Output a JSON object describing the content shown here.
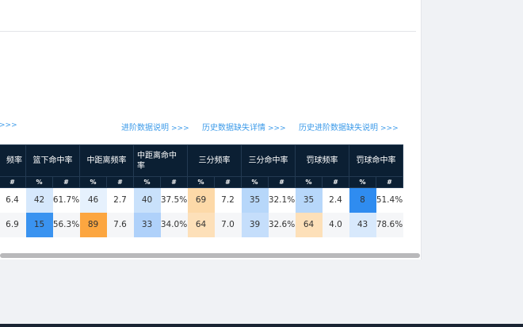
{
  "links": [
    {
      "label": "",
      "arrow": ">>>"
    },
    {
      "label": "进阶数据说明",
      "arrow": ">>>"
    },
    {
      "label": "历史数据缺失详情",
      "arrow": ">>>"
    },
    {
      "label": "历史进阶数据缺失说明",
      "arrow": ">>>"
    }
  ],
  "table": {
    "groups": [
      "频率",
      "篮下命中率",
      "中距离频率",
      "中距离命中率",
      "三分频率",
      "三分命中率",
      "罚球频率",
      "罚球命中率"
    ],
    "sub": {
      "pct": "%",
      "num": "#"
    },
    "rows": [
      {
        "first": "6.4",
        "cells": [
          [
            "42",
            "61.7%"
          ],
          [
            "46",
            "2.7"
          ],
          [
            "40",
            "37.5%"
          ],
          [
            "69",
            "7.2"
          ],
          [
            "35",
            "32.1%"
          ],
          [
            "35",
            "2.4"
          ],
          [
            "8",
            "51.4%"
          ]
        ],
        "colors": [
          "#d6e8fc",
          "#e6f1fd",
          "#c9e1fb",
          "#fdd9a8",
          "#b7d7fa",
          "#b7d7fa",
          "#2f8cf0"
        ]
      },
      {
        "first": "6.9",
        "cells": [
          [
            "15",
            "56.3%"
          ],
          [
            "89",
            "7.6"
          ],
          [
            "33",
            "34.0%"
          ],
          [
            "64",
            "7.0"
          ],
          [
            "39",
            "32.6%"
          ],
          [
            "64",
            "4.0"
          ],
          [
            "43",
            "78.6%"
          ]
        ],
        "colors": [
          "#3a93f0",
          "#fca640",
          "#afd1fa",
          "#fde0b9",
          "#c5defb",
          "#fde0b9",
          "#d8e9fc"
        ]
      }
    ]
  }
}
